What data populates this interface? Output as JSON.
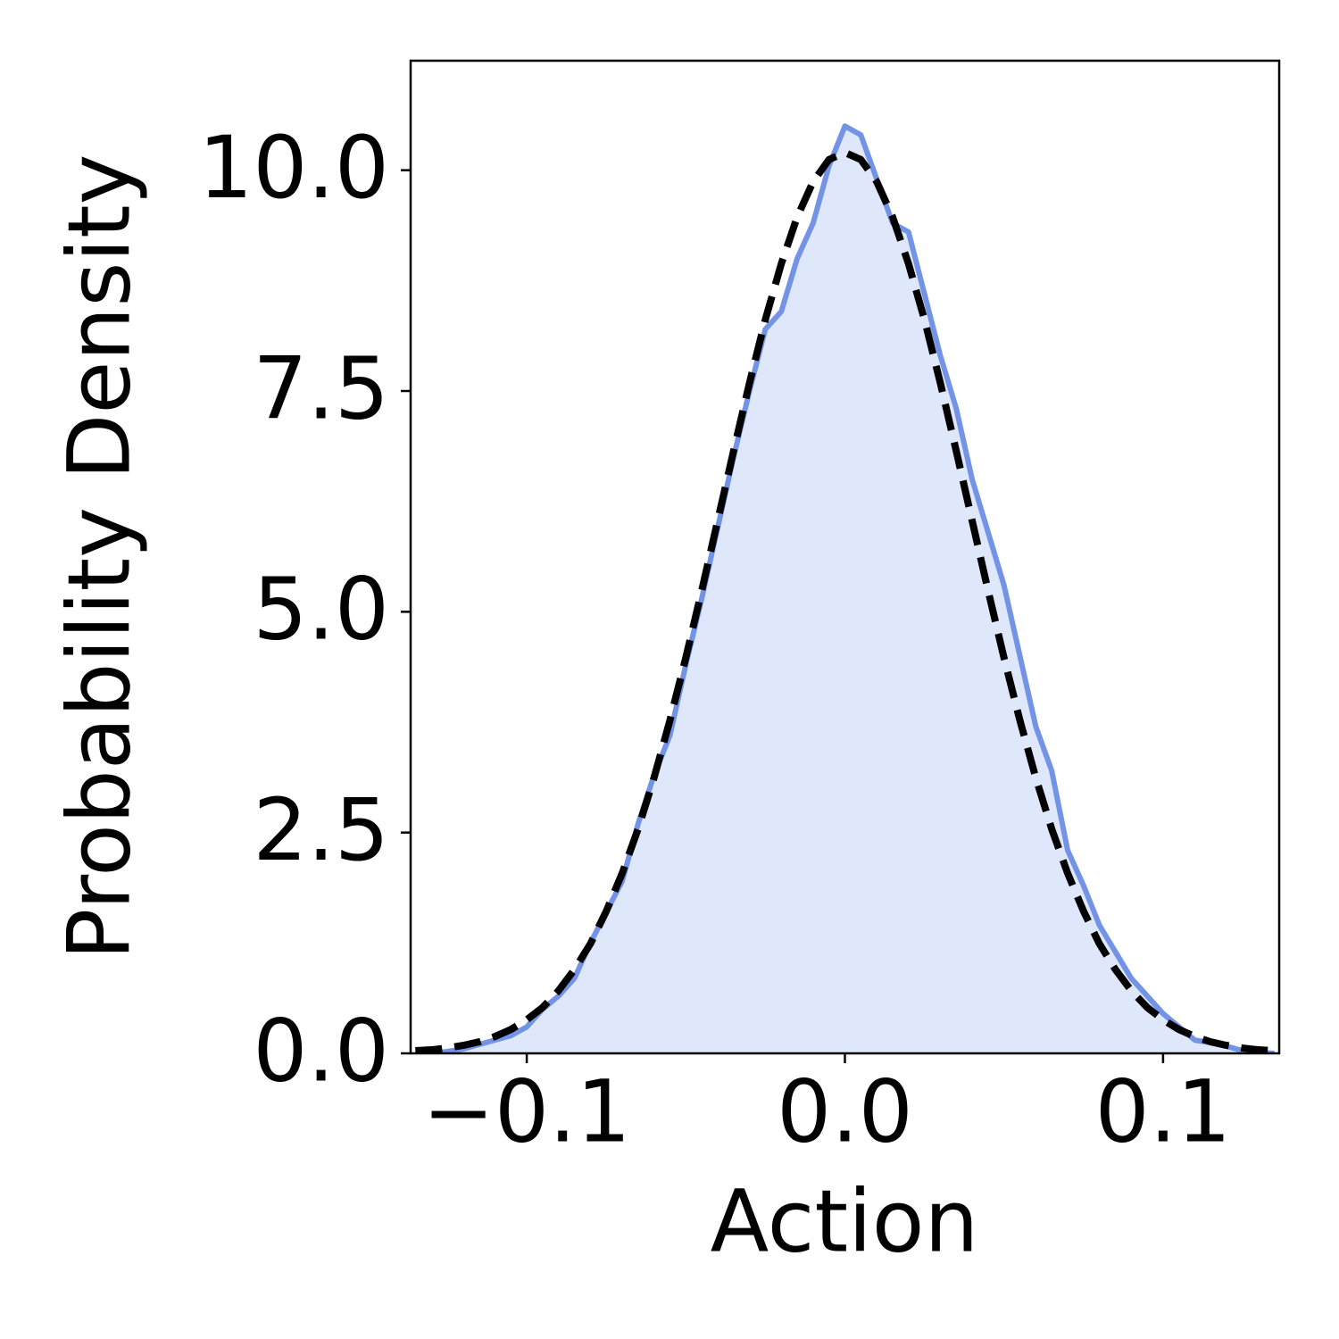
{
  "chart_data": {
    "type": "area-line",
    "x_label": "Action",
    "y_label": "Probability Density",
    "x": [
      -0.135,
      -0.13,
      -0.125,
      -0.12,
      -0.115,
      -0.11,
      -0.105,
      -0.1,
      -0.095,
      -0.09,
      -0.085,
      -0.08,
      -0.075,
      -0.07,
      -0.065,
      -0.06,
      -0.055,
      -0.05,
      -0.045,
      -0.04,
      -0.035,
      -0.03,
      -0.025,
      -0.02,
      -0.015,
      -0.01,
      -0.005,
      0,
      0.005,
      0.01,
      0.015,
      0.02,
      0.025,
      0.03,
      0.035,
      0.04,
      0.045,
      0.05,
      0.055,
      0.06,
      0.065,
      0.07,
      0.075,
      0.08,
      0.085,
      0.09,
      0.095,
      0.1,
      0.105,
      0.11,
      0.115,
      0.12,
      0.125,
      0.13,
      0.135
    ],
    "series": [
      {
        "color": "#7393e6",
        "fill_color": "#dfe7fa",
        "filled": true,
        "dashed": false,
        "values": [
          0,
          0,
          0.02,
          0.05,
          0.1,
          0.15,
          0.2,
          0.3,
          0.5,
          0.65,
          0.85,
          1.25,
          1.6,
          1.95,
          2.6,
          3.15,
          3.6,
          4.4,
          5.15,
          5.95,
          6.75,
          7.5,
          8.2,
          8.4,
          9.0,
          9.4,
          10.05,
          10.5,
          10.4,
          9.9,
          9.4,
          9.3,
          8.6,
          7.9,
          7.3,
          6.5,
          5.9,
          5.3,
          4.5,
          3.7,
          3.2,
          2.3,
          1.9,
          1.45,
          1.15,
          0.85,
          0.65,
          0.45,
          0.3,
          0.15,
          0.12,
          0.08,
          0.03,
          0.01,
          0
        ]
      },
      {
        "color": "#000000",
        "filled": false,
        "dashed": true,
        "values": [
          0.03,
          0.04,
          0.06,
          0.09,
          0.13,
          0.19,
          0.27,
          0.38,
          0.52,
          0.71,
          0.95,
          1.24,
          1.61,
          2.04,
          2.54,
          3.12,
          3.77,
          4.48,
          5.24,
          6.03,
          6.82,
          7.59,
          8.31,
          8.94,
          9.47,
          9.87,
          10.12,
          10.2,
          10.12,
          9.87,
          9.47,
          8.94,
          8.31,
          7.59,
          6.82,
          6.03,
          5.24,
          4.48,
          3.77,
          3.12,
          2.54,
          2.04,
          1.61,
          1.24,
          0.95,
          0.71,
          0.52,
          0.38,
          0.27,
          0.19,
          0.13,
          0.09,
          0.06,
          0.04,
          0.03
        ]
      }
    ],
    "xlim": [
      -0.1365,
      0.1365
    ],
    "ylim": [
      0,
      11.24
    ],
    "xticks": [
      {
        "value": -0.1,
        "label": "−0.1"
      },
      {
        "value": 0,
        "label": "0.0"
      },
      0.1
    ],
    "yticks": [
      {
        "value": 0,
        "label": "0.0"
      },
      2.5,
      {
        "value": 5,
        "label": "5.0"
      },
      7.5,
      {
        "value": 10,
        "label": "10.0"
      }
    ],
    "grid": false
  }
}
